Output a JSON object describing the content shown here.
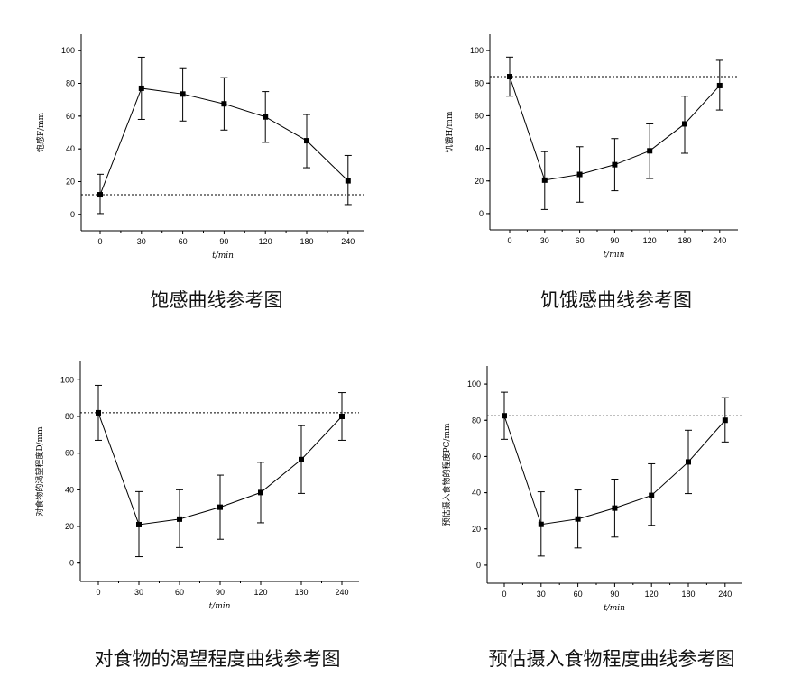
{
  "chart_data": [
    {
      "type": "line",
      "caption": "饱感曲线参考图",
      "ylabel": "饱感F/mm",
      "xlabel": "t/min",
      "categories": [
        "0",
        "30",
        "60",
        "90",
        "120",
        "180",
        "240"
      ],
      "yticks": [
        "0",
        "20",
        "40",
        "60",
        "80",
        "100"
      ],
      "ylim": [
        -10,
        110
      ],
      "values": [
        12,
        77,
        73.5,
        67.5,
        59.5,
        45,
        20.5
      ],
      "err_upper": [
        24.5,
        96,
        89.5,
        83.5,
        75,
        61,
        36
      ],
      "err_lower": [
        0.5,
        58,
        57,
        51.5,
        44,
        28.5,
        6
      ],
      "reference_line": 12,
      "grid": false
    },
    {
      "type": "line",
      "caption": "饥饿感曲线参考图",
      "ylabel": "饥饿H/mm",
      "xlabel": "t/min",
      "categories": [
        "0",
        "30",
        "60",
        "90",
        "120",
        "180",
        "240"
      ],
      "yticks": [
        "0",
        "20",
        "40",
        "60",
        "80",
        "100"
      ],
      "ylim": [
        -10,
        110
      ],
      "values": [
        84,
        20.5,
        24,
        30,
        38.5,
        55,
        78.5
      ],
      "err_upper": [
        96,
        38,
        41,
        46,
        55,
        72,
        94
      ],
      "err_lower": [
        72,
        2.5,
        7,
        14,
        21.5,
        37,
        63.5
      ],
      "reference_line": 84,
      "grid": false
    },
    {
      "type": "line",
      "caption": "对食物的渴望程度曲线参考图",
      "ylabel": "对食物的渴望程度D/mm",
      "xlabel": "t/min",
      "categories": [
        "0",
        "30",
        "60",
        "90",
        "120",
        "180",
        "240"
      ],
      "yticks": [
        "0",
        "20",
        "40",
        "60",
        "80",
        "100"
      ],
      "ylim": [
        -10,
        110
      ],
      "values": [
        82,
        21,
        24,
        30.5,
        38.5,
        56.5,
        80
      ],
      "err_upper": [
        97,
        39,
        40,
        48,
        55,
        75,
        93
      ],
      "err_lower": [
        67,
        3.5,
        8.5,
        13,
        22,
        38,
        67
      ],
      "reference_line": 82,
      "grid": false
    },
    {
      "type": "line",
      "caption": "预估摄入食物程度曲线参考图",
      "ylabel": "预估摄入食物的程度PC/mm",
      "xlabel": "t/min",
      "categories": [
        "0",
        "30",
        "60",
        "90",
        "120",
        "180",
        "240"
      ],
      "yticks": [
        "0",
        "20",
        "40",
        "60",
        "80",
        "100"
      ],
      "ylim": [
        -10,
        110
      ],
      "values": [
        82.5,
        22.5,
        25.5,
        31.5,
        38.5,
        57,
        80
      ],
      "err_upper": [
        95.5,
        40.5,
        41.5,
        47.5,
        56,
        74.5,
        92.5
      ],
      "err_lower": [
        69.5,
        5,
        9.5,
        15.5,
        22,
        39.5,
        68
      ],
      "reference_line": 82.5,
      "grid": false
    }
  ]
}
